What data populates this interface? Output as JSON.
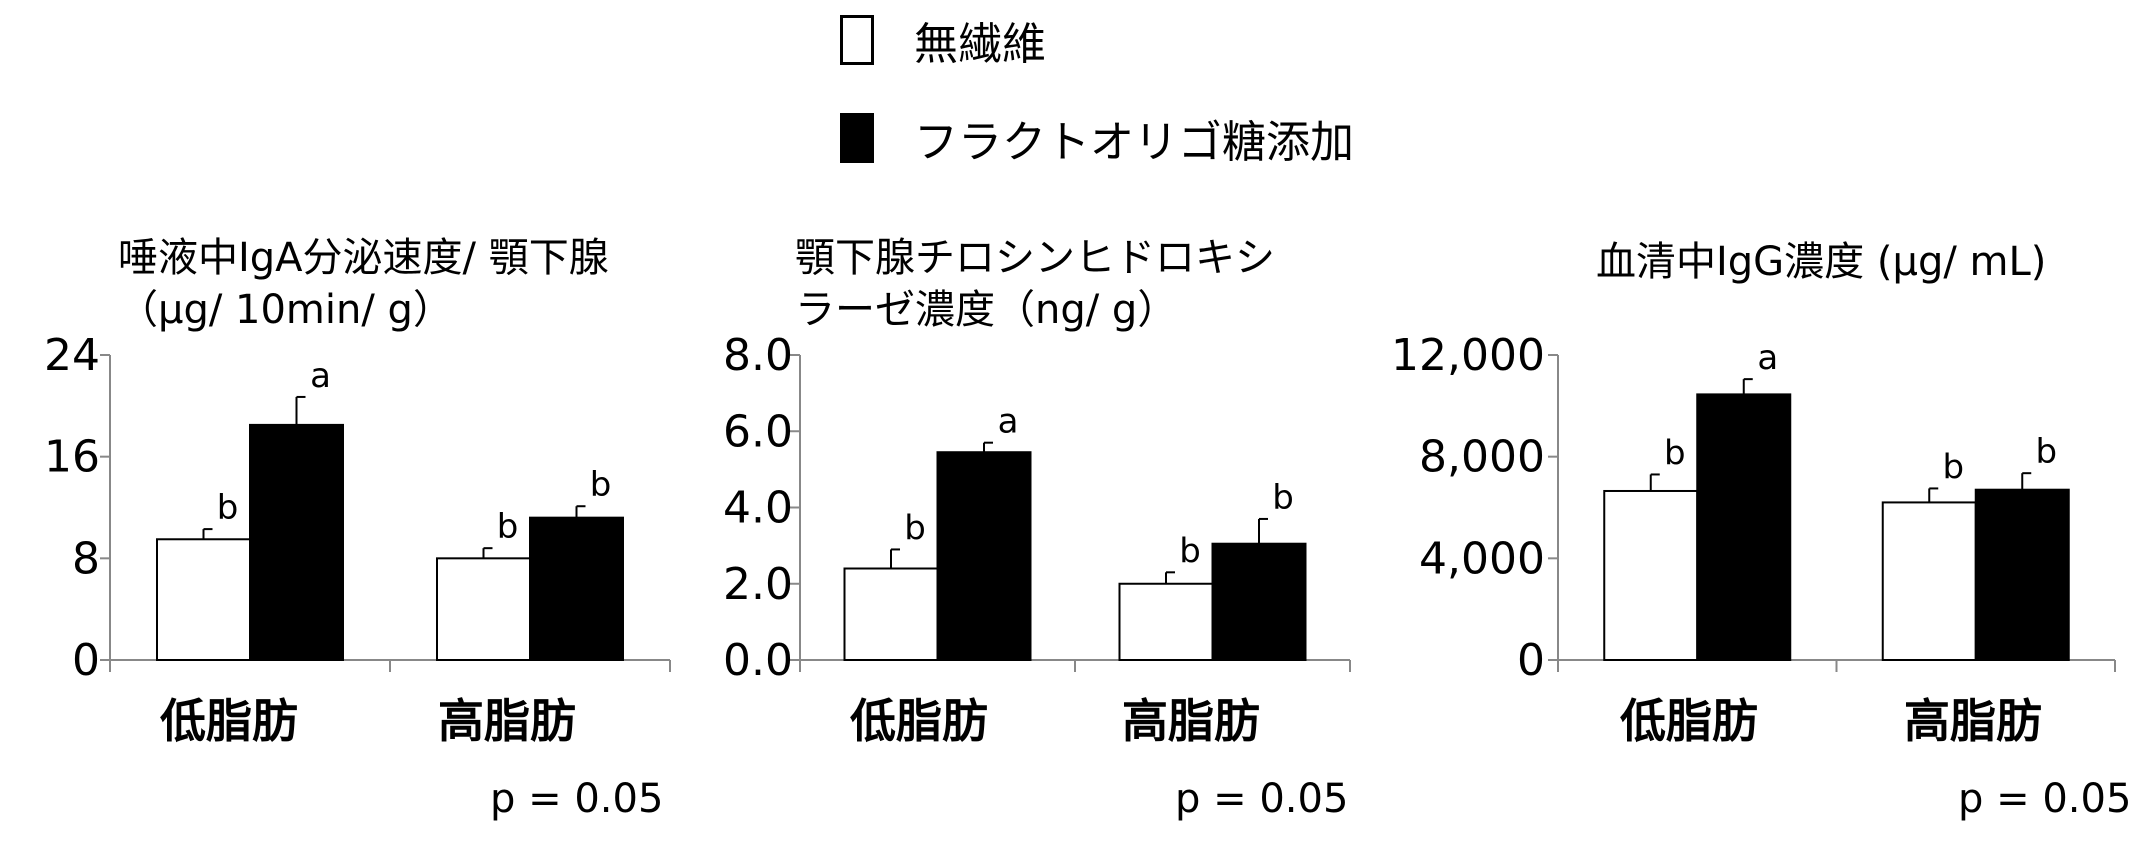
{
  "legend": [
    {
      "label": "無繊維",
      "color": "#ffffff"
    },
    {
      "label": "フラクトオリゴ糖添加",
      "color": "#000000"
    }
  ],
  "chart_data": [
    {
      "type": "bar",
      "title_lines": [
        "唾液中IgA分泌速度/ 顎下腺",
        "（μg/ 10min/ g）"
      ],
      "categories": [
        "低脂肪",
        "高脂肪"
      ],
      "ylim": [
        0,
        24
      ],
      "yticks": [
        "0",
        "8",
        "16",
        "24"
      ],
      "series": [
        {
          "name": "無繊維",
          "values": [
            9.5,
            8.0
          ],
          "errors": [
            0.8,
            0.8
          ],
          "letters": [
            "b",
            "b"
          ]
        },
        {
          "name": "フラクトオリゴ糖添加",
          "values": [
            18.5,
            11.2
          ],
          "errors": [
            2.2,
            0.9
          ],
          "letters": [
            "a",
            "b"
          ]
        }
      ],
      "p_value": "p = 0.05"
    },
    {
      "type": "bar",
      "title_lines": [
        "顎下腺チロシンヒドロキシ",
        "ラーゼ濃度（ng/ g）"
      ],
      "categories": [
        "低脂肪",
        "高脂肪"
      ],
      "ylim": [
        0,
        8.0
      ],
      "yticks": [
        "0.0",
        "2.0",
        "4.0",
        "6.0",
        "8.0"
      ],
      "series": [
        {
          "name": "無繊維",
          "values": [
            2.4,
            2.0
          ],
          "errors": [
            0.5,
            0.3
          ],
          "letters": [
            "b",
            "b"
          ]
        },
        {
          "name": "フラクトオリゴ糖添加",
          "values": [
            5.45,
            3.05
          ],
          "errors": [
            0.25,
            0.65
          ],
          "letters": [
            "a",
            "b"
          ]
        }
      ],
      "p_value": "p = 0.05"
    },
    {
      "type": "bar",
      "title_lines": [
        "血清中IgG濃度 (μg/ mL)"
      ],
      "categories": [
        "低脂肪",
        "高脂肪"
      ],
      "ylim": [
        0,
        12000
      ],
      "yticks": [
        "0",
        "4,000",
        "8,000",
        "12,000"
      ],
      "series": [
        {
          "name": "無繊維",
          "values": [
            6650,
            6200
          ],
          "errors": [
            650,
            550
          ],
          "letters": [
            "b",
            "b"
          ]
        },
        {
          "name": "フラクトオリゴ糖添加",
          "values": [
            10450,
            6700
          ],
          "errors": [
            600,
            650
          ],
          "letters": [
            "a",
            "b"
          ]
        }
      ],
      "p_value": "p = 0.05"
    }
  ]
}
